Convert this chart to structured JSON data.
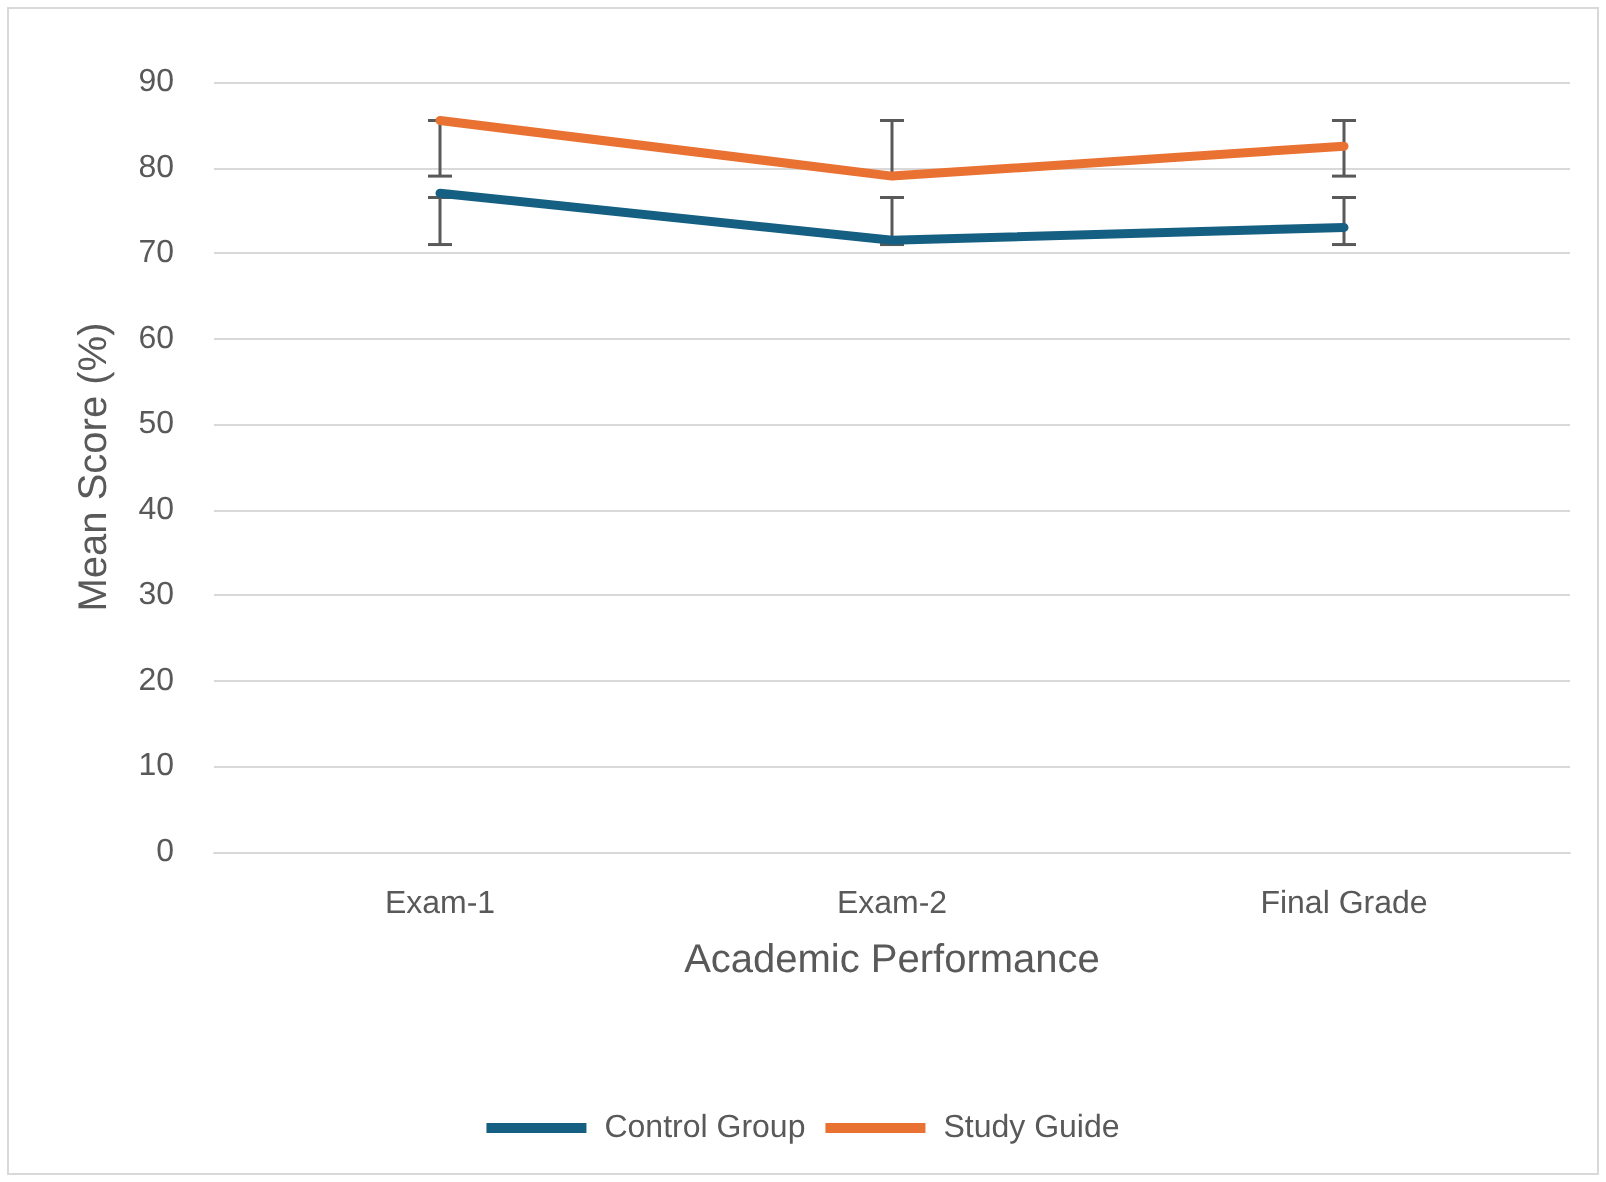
{
  "chart_data": {
    "type": "line",
    "xlabel": "Academic Performance",
    "ylabel": "Mean Score (%)",
    "categories": [
      "Exam-1",
      "Exam-2",
      "Final Grade"
    ],
    "series": [
      {
        "name": "Control Group",
        "color": "#156082",
        "values": [
          77,
          71.5,
          73
        ],
        "errors": [
          [
            71,
            76.5
          ],
          [
            71,
            76.5
          ],
          [
            71,
            76.5
          ]
        ]
      },
      {
        "name": "Study Guide",
        "color": "#e97132",
        "values": [
          85.5,
          79,
          82.5
        ],
        "errors": [
          [
            79,
            85.5
          ],
          [
            79,
            85.5
          ],
          [
            79,
            85.5
          ]
        ]
      }
    ],
    "ylim": [
      0,
      90
    ],
    "yticks": [
      0,
      10,
      20,
      30,
      40,
      50,
      60,
      70,
      80,
      90
    ],
    "grid": "y",
    "legend": "bottom",
    "marker": "none",
    "line_style": "solid"
  }
}
